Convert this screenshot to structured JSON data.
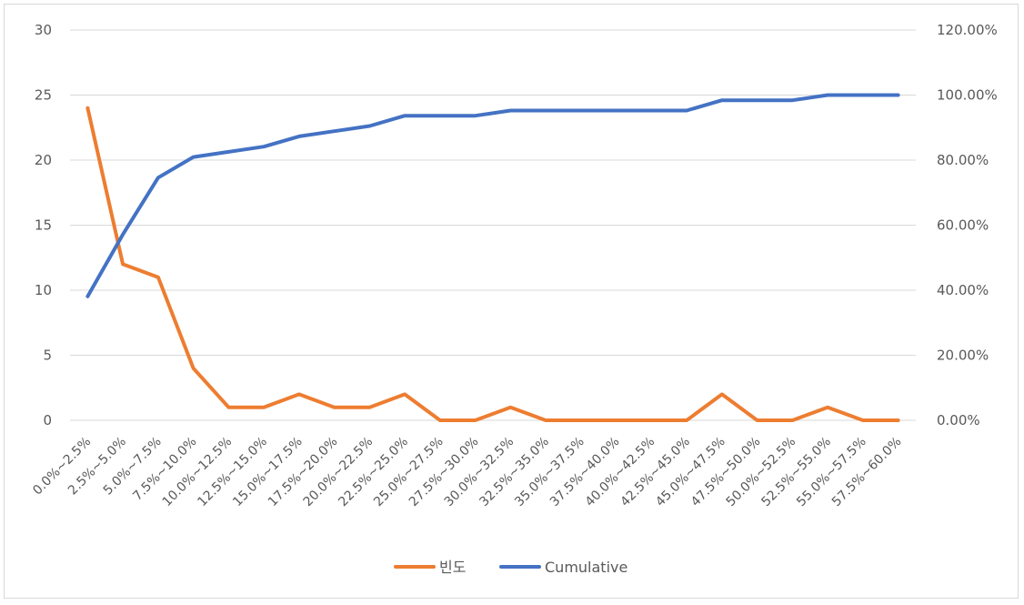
{
  "chart_data": {
    "type": "line",
    "categories": [
      "0.0%~2.5%",
      "2.5%~5.0%",
      "5.0%~7.5%",
      "7.5%~10.0%",
      "10.0%~12.5%",
      "12.5%~15.0%",
      "15.0%~17.5%",
      "17.5%~20.0%",
      "20.0%~22.5%",
      "22.5%~25.0%",
      "25.0%~27.5%",
      "27.5%~30.0%",
      "30.0%~32.5%",
      "32.5%~35.0%",
      "35.0%~37.5%",
      "37.5%~40.0%",
      "40.0%~42.5%",
      "42.5%~45.0%",
      "45.0%~47.5%",
      "47.5%~50.0%",
      "50.0%~52.5%",
      "52.5%~55.0%",
      "55.0%~57.5%",
      "57.5%~60.0%"
    ],
    "series": [
      {
        "name": "빈도",
        "axis": "left",
        "color": "#ed7d31",
        "values": [
          24,
          12,
          11,
          4,
          1,
          1,
          2,
          1,
          1,
          2,
          0,
          0,
          1,
          0,
          0,
          0,
          0,
          0,
          2,
          0,
          0,
          1,
          0,
          0
        ]
      },
      {
        "name": "Cumulative",
        "axis": "right",
        "color": "#4472c4",
        "values": [
          0.381,
          0.5714,
          0.746,
          0.8095,
          0.8254,
          0.8413,
          0.873,
          0.8889,
          0.9048,
          0.9365,
          0.9365,
          0.9365,
          0.9524,
          0.9524,
          0.9524,
          0.9524,
          0.9524,
          0.9524,
          0.9841,
          0.9841,
          0.9841,
          1.0,
          1.0,
          1.0
        ]
      }
    ],
    "y_left": {
      "min": 0,
      "max": 30,
      "ticks": [
        "0",
        "5",
        "10",
        "15",
        "20",
        "25",
        "30"
      ]
    },
    "y_right": {
      "min": 0,
      "max": 1.2,
      "ticks": [
        "0.00%",
        "20.00%",
        "40.00%",
        "60.00%",
        "80.00%",
        "100.00%",
        "120.00%"
      ]
    },
    "grid": true,
    "legend_position": "bottom"
  }
}
